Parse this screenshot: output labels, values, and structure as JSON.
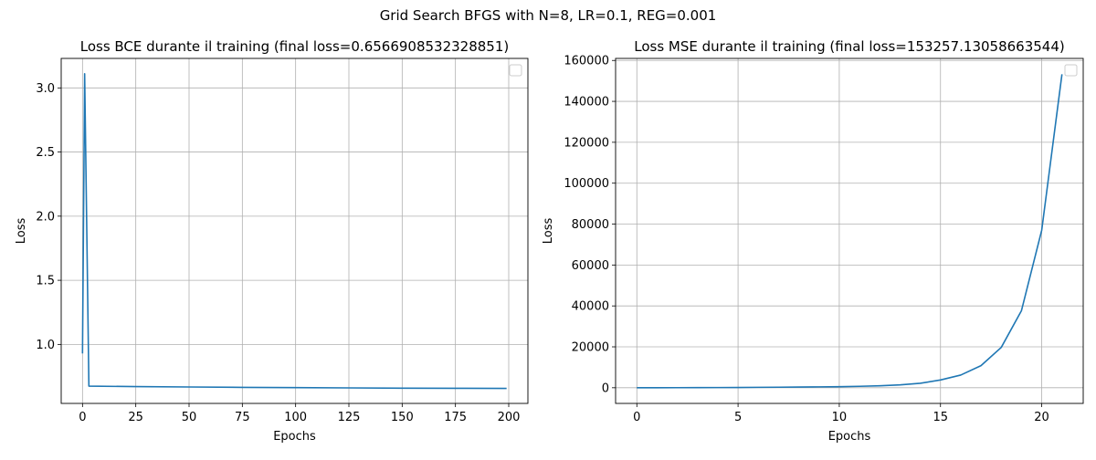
{
  "figure": {
    "suptitle": "Grid Search BFGS with N=8, LR=0.1, REG=0.001"
  },
  "chart_data": [
    {
      "type": "line",
      "title": "Loss BCE durante il training (final loss=0.6566908532328851)",
      "xlabel": "Epochs",
      "ylabel": "Loss",
      "xlim": [
        -10,
        209
      ],
      "ylim": [
        0.54,
        3.23
      ],
      "xticks": [
        0,
        25,
        50,
        75,
        100,
        125,
        150,
        175,
        200
      ],
      "xtick_labels": [
        "0",
        "25",
        "50",
        "75",
        "100",
        "125",
        "150",
        "175",
        "200"
      ],
      "yticks": [
        1.0,
        1.5,
        2.0,
        2.5,
        3.0
      ],
      "ytick_labels": [
        "1.0",
        "1.5",
        "2.0",
        "2.5",
        "3.0"
      ],
      "grid": true,
      "legend": "top-right (empty)",
      "series": [
        {
          "color": "#1f77b4",
          "x": [
            0,
            1,
            2,
            3,
            25,
            50,
            75,
            100,
            125,
            150,
            175,
            199
          ],
          "y": [
            0.93,
            3.11,
            1.9,
            0.675,
            0.671,
            0.668,
            0.665,
            0.663,
            0.661,
            0.659,
            0.658,
            0.6567
          ]
        }
      ]
    },
    {
      "type": "line",
      "title": "Loss MSE durante il training (final loss=153257.13058663544)",
      "xlabel": "Epochs",
      "ylabel": "Loss",
      "xlim": [
        -1.05,
        22.05
      ],
      "ylim": [
        -7660,
        161000
      ],
      "xticks": [
        0,
        5,
        10,
        15,
        20
      ],
      "xtick_labels": [
        "0",
        "5",
        "10",
        "15",
        "20"
      ],
      "yticks": [
        0,
        20000,
        40000,
        60000,
        80000,
        100000,
        120000,
        140000,
        160000
      ],
      "ytick_labels": [
        "0",
        "20000",
        "40000",
        "60000",
        "80000",
        "100000",
        "120000",
        "140000",
        "160000"
      ],
      "grid": true,
      "legend": "top-right (empty)",
      "series": [
        {
          "color": "#1f77b4",
          "x": [
            0,
            1,
            2,
            3,
            4,
            5,
            6,
            7,
            8,
            9,
            10,
            11,
            12,
            13,
            14,
            15,
            16,
            17,
            18,
            19,
            20,
            21
          ],
          "y": [
            12,
            20,
            35,
            55,
            90,
            140,
            200,
            260,
            340,
            430,
            520,
            700,
            950,
            1400,
            2200,
            3800,
            6200,
            10800,
            19700,
            37700,
            77000,
            153257
          ]
        }
      ]
    }
  ]
}
